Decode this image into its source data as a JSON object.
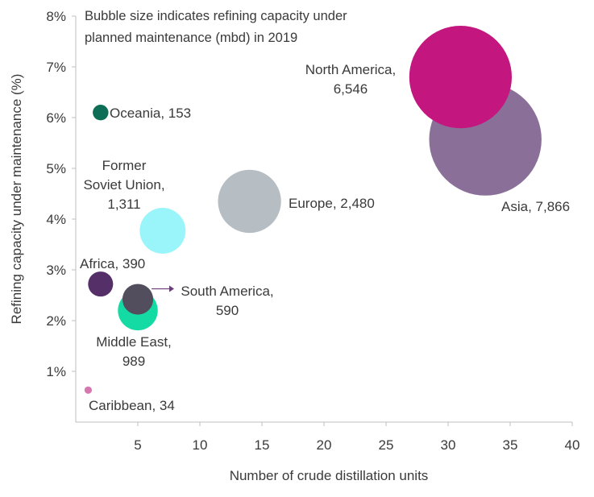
{
  "chart_data": {
    "type": "scatter",
    "subtype": "bubble",
    "title": "Bubble size indicates refining capacity under planned maintenance (mbd) in 2019",
    "title_lines": [
      "Bubble size indicates refining capacity under",
      "planned maintenance (mbd) in 2019"
    ],
    "xlabel": "Number of crude distillation units",
    "ylabel": "Refining capacity under maintenance (%)",
    "xlim": [
      0,
      40
    ],
    "ylim": [
      0,
      8
    ],
    "xticks": [
      5,
      10,
      15,
      20,
      25,
      30,
      35,
      40
    ],
    "yticks": [
      1,
      2,
      3,
      4,
      5,
      6,
      7,
      8
    ],
    "xtick_labels": [
      "5",
      "10",
      "15",
      "20",
      "25",
      "30",
      "35",
      "40"
    ],
    "ytick_labels": [
      "1%",
      "2%",
      "3%",
      "4%",
      "5%",
      "6%",
      "7%",
      "8%"
    ],
    "grid": false,
    "legend": "none",
    "points": [
      {
        "name": "Asia",
        "x": 33,
        "y": 5.57,
        "size": 7866,
        "color": "#8a7099",
        "label_lines": [
          "Asia, 7,866"
        ]
      },
      {
        "name": "North America",
        "x": 31,
        "y": 6.8,
        "size": 6546,
        "color": "#c4167f",
        "label_lines": [
          "North America,",
          "6,546"
        ]
      },
      {
        "name": "Europe",
        "x": 14,
        "y": 4.35,
        "size": 2480,
        "color": "#b6bec4",
        "label_lines": [
          "Europe, 2,480"
        ]
      },
      {
        "name": "Former Soviet Union",
        "x": 7,
        "y": 3.77,
        "size": 1311,
        "color": "#9af5fa",
        "label_lines": [
          "Former",
          "Soviet Union,",
          "1,311"
        ]
      },
      {
        "name": "Middle East",
        "x": 5,
        "y": 2.2,
        "size": 989,
        "color": "#14dba3",
        "label_lines": [
          "Middle East,",
          "989"
        ]
      },
      {
        "name": "South America",
        "x": 5,
        "y": 2.42,
        "size": 590,
        "color": "#524e5e",
        "label_lines": [
          "South America,",
          "590"
        ]
      },
      {
        "name": "Africa",
        "x": 2,
        "y": 2.72,
        "size": 390,
        "color": "#553068",
        "label_lines": [
          "Africa, 390"
        ]
      },
      {
        "name": "Oceania",
        "x": 2,
        "y": 6.1,
        "size": 153,
        "color": "#0e6e55",
        "label_lines": [
          "Oceania,  153"
        ]
      },
      {
        "name": "Caribbean",
        "x": 1,
        "y": 0.63,
        "size": 34,
        "color": "#d677b2",
        "label_lines": [
          "Caribbean,  34"
        ]
      }
    ]
  }
}
